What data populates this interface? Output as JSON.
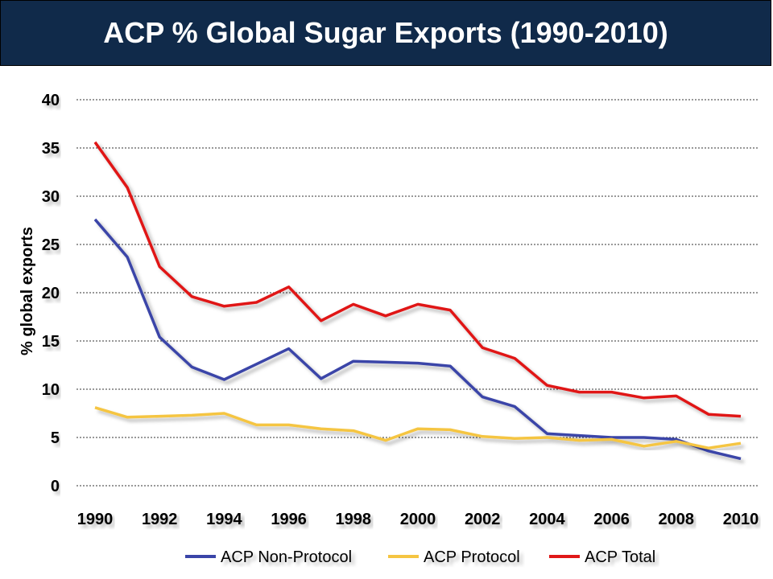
{
  "title": "ACP % Global Sugar Exports (1990-2010)",
  "chart_data": {
    "type": "line",
    "ylabel": "% global exports",
    "xlabel": "",
    "xlim": [
      1990,
      2010
    ],
    "ylim": [
      0,
      40
    ],
    "y_ticks": [
      "0",
      "5",
      "10",
      "15",
      "20",
      "25",
      "30",
      "35",
      "40"
    ],
    "x_ticks": [
      "1990",
      "1992",
      "1994",
      "1996",
      "1998",
      "2000",
      "2002",
      "2004",
      "2006",
      "2008",
      "2010"
    ],
    "grid": "horizontal dotted",
    "legend_position": "bottom",
    "x": [
      1990,
      1991,
      1992,
      1993,
      1994,
      1995,
      1996,
      1997,
      1998,
      1999,
      2000,
      2001,
      2002,
      2003,
      2004,
      2005,
      2006,
      2007,
      2008,
      2009,
      2010
    ],
    "series": [
      {
        "name": "ACP Non-Protocol",
        "color": "#3a45a8",
        "values": [
          27.6,
          23.7,
          15.4,
          12.3,
          11.0,
          12.6,
          14.2,
          11.1,
          12.9,
          12.8,
          12.7,
          12.4,
          9.2,
          8.2,
          5.4,
          5.2,
          5.0,
          5.0,
          4.8,
          3.6,
          2.8
        ]
      },
      {
        "name": "ACP Protocol",
        "color": "#f5c542",
        "values": [
          8.1,
          7.1,
          7.2,
          7.3,
          7.5,
          6.3,
          6.3,
          5.9,
          5.7,
          4.7,
          5.9,
          5.8,
          5.1,
          4.9,
          5.0,
          4.7,
          4.8,
          4.1,
          4.6,
          3.9,
          4.4
        ]
      },
      {
        "name": "ACP Total",
        "color": "#e01818",
        "values": [
          35.6,
          30.9,
          22.7,
          19.6,
          18.6,
          19.0,
          20.6,
          17.1,
          18.8,
          17.6,
          18.8,
          18.2,
          14.3,
          13.2,
          10.4,
          9.7,
          9.7,
          9.1,
          9.3,
          7.4,
          7.2
        ]
      }
    ]
  }
}
